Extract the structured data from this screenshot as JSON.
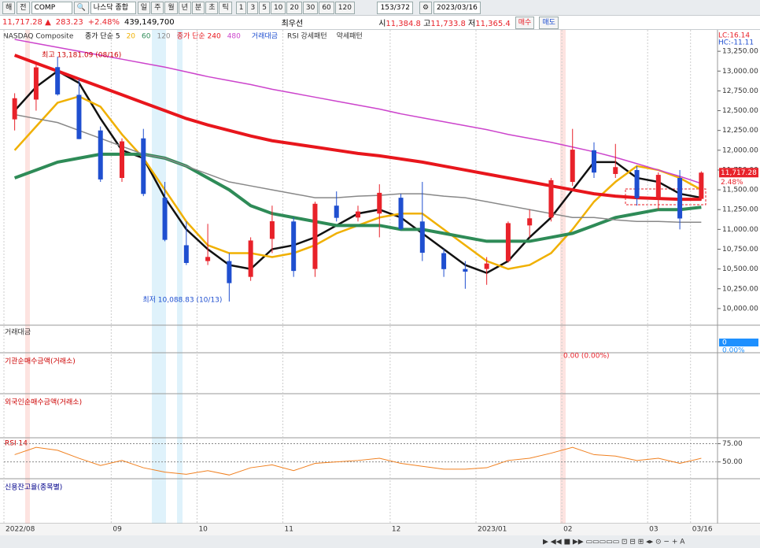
{
  "toolbar": {
    "market": "해",
    "scope": "전",
    "code": "COMP",
    "name": "나스닥 종합",
    "periods": [
      "일",
      "주",
      "월",
      "년",
      "분",
      "초",
      "틱"
    ],
    "intervals": [
      "1",
      "3",
      "5",
      "10",
      "20",
      "30",
      "60",
      "120"
    ],
    "count": "153/372",
    "date": "2023/03/16"
  },
  "infobar": {
    "price": "11,717.28",
    "arrow": "▲",
    "change": "283.23",
    "change_pct": "+2.48%",
    "volume": "439,149,700",
    "best": "최우선",
    "open_label": "시",
    "open": "11,384.8",
    "high_label": "고",
    "high": "11,733.8",
    "low_label": "저",
    "low": "11,365.4",
    "buy": "매수",
    "sell": "매도"
  },
  "panels": {
    "amount": "거래대금",
    "institution": "기관순매수금액(거래소)",
    "institution_value": "0.00 (0.00%)",
    "foreign": "외국인순매수금액(거래소)",
    "credit": "신용잔고율(종목별)",
    "amount_value": "0",
    "amount_pct": "0.00%"
  },
  "chart_data": [
    {
      "type": "candlestick",
      "title": "NASDAQ Composite",
      "legend_extra": [
        "거래대금",
        "RSI 강세패턴",
        "약세패턴"
      ],
      "annotations": {
        "high": "최고 13,181.09 (08/16)",
        "low": "최저 10,088.83 (10/13)",
        "last_price": "11,717.28",
        "last_change": "2.48%",
        "lc": "LC:16.14",
        "hc": "HC:-11.11"
      },
      "categories": [
        "2022/08",
        null,
        null,
        null,
        null,
        "09",
        null,
        null,
        null,
        "10",
        null,
        null,
        null,
        "11",
        null,
        null,
        null,
        null,
        "12",
        null,
        null,
        null,
        "2023/01",
        null,
        null,
        null,
        "02",
        null,
        null,
        null,
        "03",
        null,
        "03/16"
      ],
      "open": [
        12390,
        12640,
        13050,
        12700,
        12250,
        11650,
        12150,
        11400,
        10800,
        10600,
        10600,
        10400,
        10880,
        11100,
        10500,
        11300,
        11150,
        11200,
        11400,
        11100,
        10700,
        10500,
        10500,
        10600,
        11050,
        11150,
        11600,
        12000,
        11700,
        11750,
        11400,
        11650,
        11385
      ],
      "high": [
        12720,
        13080,
        13181,
        12900,
        12300,
        12150,
        12270,
        11600,
        11100,
        11070,
        10700,
        10900,
        11300,
        11150,
        11350,
        11480,
        11300,
        11570,
        11450,
        11600,
        10750,
        10600,
        10650,
        11100,
        11250,
        11650,
        12270,
        12100,
        12080,
        11800,
        11720,
        11750,
        11734
      ],
      "low": [
        12250,
        12500,
        12690,
        12140,
        11600,
        11600,
        11420,
        10850,
        10550,
        10550,
        10089,
        10350,
        10700,
        10400,
        10400,
        11100,
        11100,
        10900,
        10990,
        10600,
        10400,
        10250,
        10300,
        10580,
        10900,
        11100,
        11550,
        11650,
        11650,
        11300,
        11250,
        11000,
        11365
      ],
      "close": [
        12657,
        13047,
        12705,
        12141,
        11631,
        12112,
        11448,
        10868,
        10576,
        10652,
        10321,
        10860,
        11103,
        10475,
        11324,
        11146,
        11226,
        11462,
        11005,
        10705,
        10498,
        10466,
        10569,
        11079,
        11140,
        11622,
        12007,
        11718,
        11787,
        11395,
        11689,
        11138,
        11717
      ],
      "up_color": "#e8222a",
      "down_color": "#1f4fd0",
      "series": [
        {
          "name": "종가 단순 5",
          "color": "#111111",
          "width": 2.5,
          "values": [
            12500,
            12800,
            13000,
            12850,
            12400,
            12000,
            11900,
            11400,
            11000,
            10750,
            10550,
            10500,
            10750,
            10800,
            10900,
            11050,
            11200,
            11250,
            11150,
            10950,
            10750,
            10550,
            10450,
            10600,
            10900,
            11150,
            11500,
            11850,
            11850,
            11650,
            11600,
            11450,
            11400
          ]
        },
        {
          "name": "20",
          "color": "#f0b000",
          "width": 2.5,
          "values": [
            12000,
            12300,
            12600,
            12680,
            12550,
            12200,
            11900,
            11500,
            11100,
            10800,
            10700,
            10700,
            10650,
            10700,
            10800,
            10950,
            11050,
            11150,
            11200,
            11200,
            11000,
            10800,
            10600,
            10500,
            10550,
            10700,
            11000,
            11350,
            11600,
            11800,
            11750,
            11650,
            11500
          ]
        },
        {
          "name": "60",
          "color": "#2e8b57",
          "width": 4,
          "values": [
            11650,
            11750,
            11850,
            11900,
            11950,
            11950,
            11950,
            11900,
            11800,
            11650,
            11500,
            11300,
            11200,
            11150,
            11100,
            11050,
            11050,
            11050,
            11000,
            11000,
            10950,
            10900,
            10850,
            10850,
            10850,
            10900,
            10950,
            11050,
            11150,
            11200,
            11250,
            11250,
            11280
          ]
        },
        {
          "name": "120",
          "color": "#888888",
          "width": 1.5,
          "values": [
            12450,
            12400,
            12350,
            12250,
            12150,
            12050,
            11950,
            11900,
            11800,
            11700,
            11600,
            11550,
            11500,
            11450,
            11400,
            11400,
            11420,
            11430,
            11450,
            11450,
            11420,
            11400,
            11350,
            11300,
            11250,
            11200,
            11150,
            11150,
            11120,
            11100,
            11100,
            11090,
            11090
          ]
        },
        {
          "name": "종가 단순 240",
          "color": "#e8161c",
          "width": 4,
          "values": [
            13200,
            13100,
            13000,
            12900,
            12800,
            12700,
            12600,
            12500,
            12400,
            12320,
            12250,
            12180,
            12120,
            12080,
            12040,
            12000,
            11960,
            11930,
            11890,
            11850,
            11800,
            11750,
            11700,
            11650,
            11600,
            11550,
            11500,
            11450,
            11420,
            11400,
            11390,
            11380,
            11380
          ]
        },
        {
          "name": "480",
          "color": "#cc44cc",
          "width": 1.5,
          "values": [
            13400,
            13350,
            13300,
            13250,
            13200,
            13150,
            13100,
            13050,
            12990,
            12930,
            12880,
            12830,
            12770,
            12720,
            12670,
            12620,
            12570,
            12520,
            12460,
            12410,
            12360,
            12310,
            12260,
            12200,
            12150,
            12100,
            12040,
            11980,
            11910,
            11830,
            11750,
            11670,
            11580
          ]
        }
      ],
      "ylim": [
        9800,
        13500
      ],
      "yticks": [
        {
          "value": 10000,
          "label": "10,000.00"
        },
        {
          "value": 10250,
          "label": "10,250.00"
        },
        {
          "value": 10500,
          "label": "10,500.00"
        },
        {
          "value": 10750,
          "label": "10,750.00"
        },
        {
          "value": 11000,
          "label": "11,000.00"
        },
        {
          "value": 11250,
          "label": "11,250.00"
        },
        {
          "value": 11500,
          "label": "11,500.00"
        },
        {
          "value": 11750,
          "label": "11,750.00"
        },
        {
          "value": 12000,
          "label": "12,000.00"
        },
        {
          "value": 12250,
          "label": "12,250.00"
        },
        {
          "value": 12500,
          "label": "12,500.00"
        },
        {
          "value": 12750,
          "label": "12,750.00"
        },
        {
          "value": 13000,
          "label": "13,000.00"
        },
        {
          "value": 13250,
          "label": "13,250.00"
        }
      ]
    },
    {
      "type": "line",
      "title": "RSI 14",
      "series": [
        {
          "name": "RSI 14",
          "color": "#f08020",
          "width": 1,
          "values": [
            60,
            70,
            66,
            55,
            45,
            52,
            42,
            36,
            33,
            38,
            32,
            42,
            46,
            38,
            48,
            50,
            52,
            55,
            48,
            44,
            40,
            40,
            42,
            52,
            55,
            62,
            70,
            60,
            58,
            52,
            55,
            48,
            55
          ]
        }
      ],
      "ylim": [
        28,
        81
      ],
      "yticks": [
        {
          "value": 75,
          "label": "75.00"
        },
        {
          "value": 50,
          "label": "50.00"
        }
      ]
    }
  ]
}
